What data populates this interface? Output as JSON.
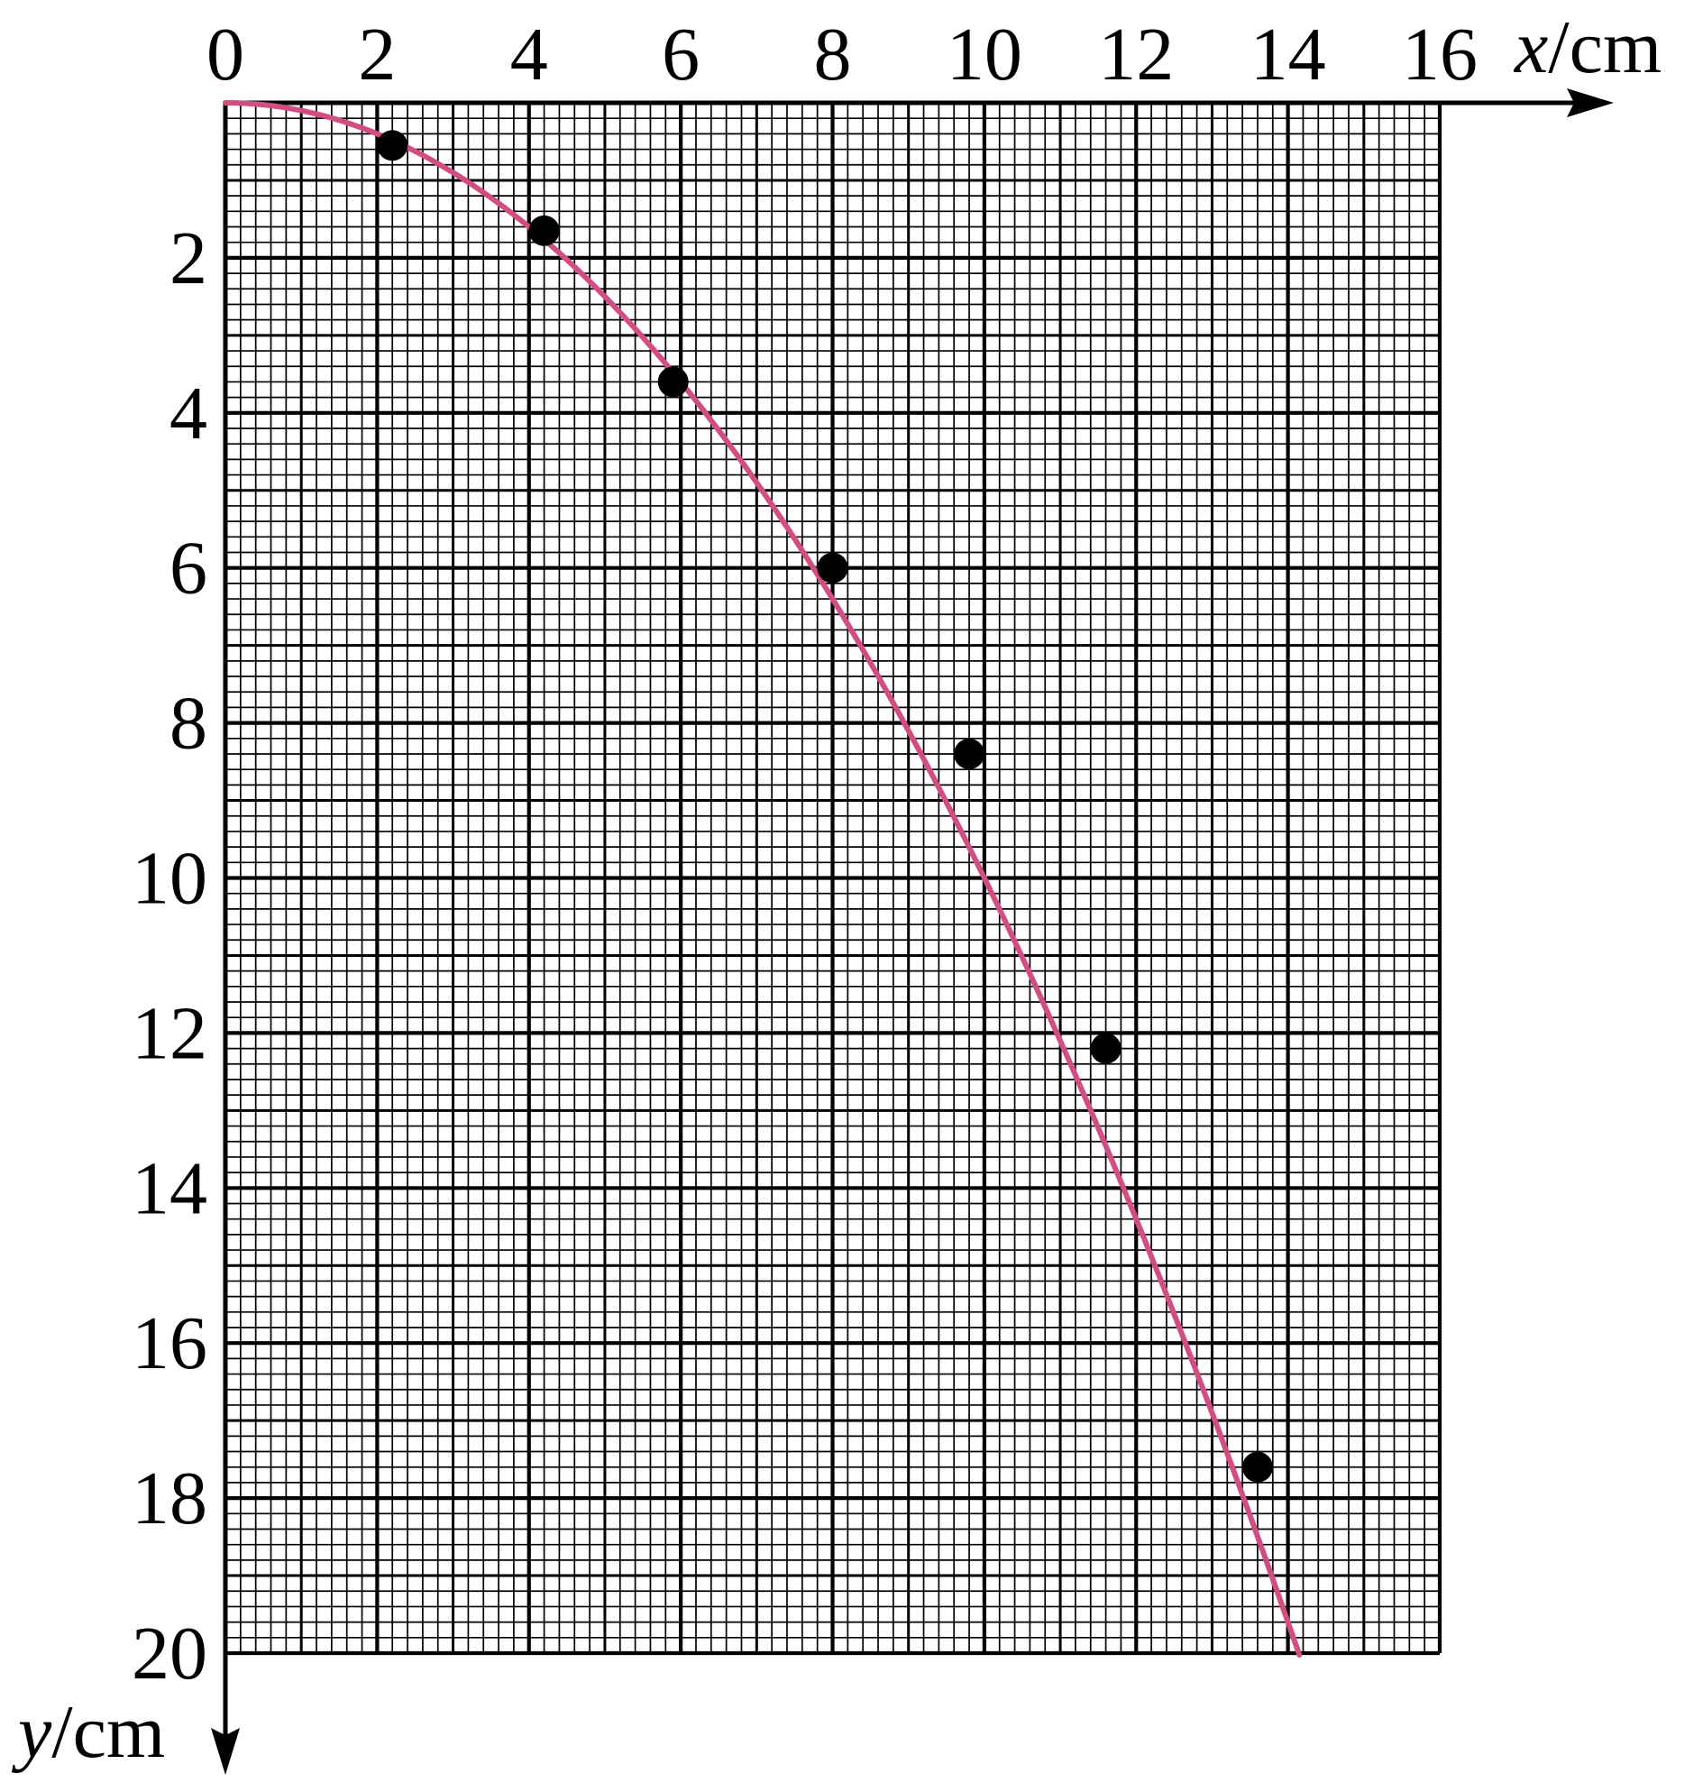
{
  "chart_data": {
    "type": "scatter",
    "title": "",
    "xlabel": {
      "var": "x",
      "unit": "/cm"
    },
    "ylabel": {
      "var": "y",
      "unit": "/cm"
    },
    "xlim": [
      0,
      16
    ],
    "ylim": [
      0,
      20
    ],
    "y_inverted": true,
    "x_ticks": [
      0,
      2,
      4,
      6,
      8,
      10,
      12,
      14,
      16
    ],
    "y_ticks": [
      2,
      4,
      6,
      8,
      10,
      12,
      14,
      16,
      18,
      20
    ],
    "grid": {
      "minor_step": 0.2,
      "mid_step": 1,
      "major_step": 2
    },
    "points": [
      {
        "x": 2.2,
        "y": 0.55
      },
      {
        "x": 4.2,
        "y": 1.65
      },
      {
        "x": 5.9,
        "y": 3.6
      },
      {
        "x": 8.0,
        "y": 6.0
      },
      {
        "x": 9.8,
        "y": 8.4
      },
      {
        "x": 11.6,
        "y": 12.2
      },
      {
        "x": 13.6,
        "y": 17.6
      }
    ],
    "curve": {
      "type": "fit",
      "form": "y = k*x^2",
      "k": 0.1,
      "x_range": [
        0,
        14.15
      ]
    },
    "colors": {
      "curve": "#d14d82",
      "points": "#000000",
      "grid": "#000000"
    }
  }
}
